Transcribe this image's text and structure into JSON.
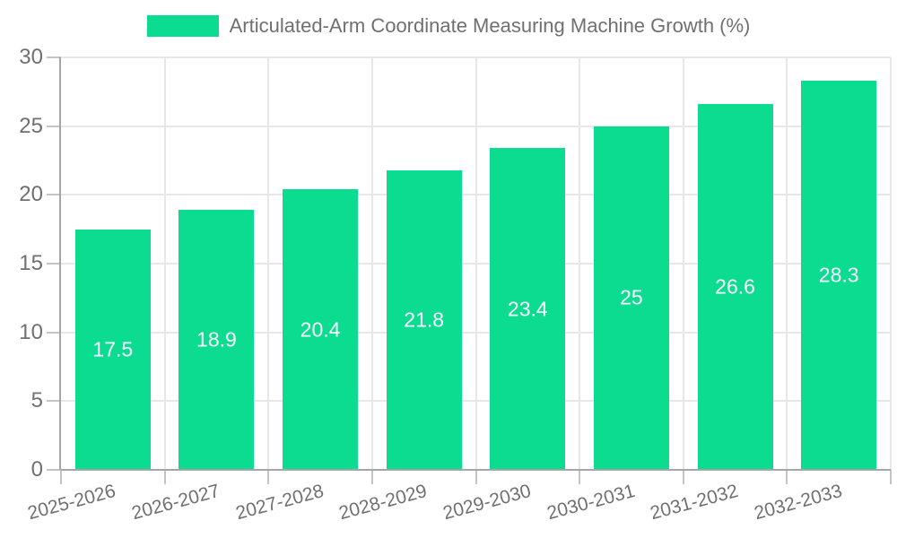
{
  "chart_data": {
    "type": "bar",
    "title": "Articulated-Arm Coordinate Measuring Machine Growth (%)",
    "categories": [
      "2025-2026",
      "2026-2027",
      "2027-2028",
      "2028-2029",
      "2029-2030",
      "2030-2031",
      "2031-2032",
      "2032-2033"
    ],
    "values": [
      17.5,
      18.9,
      20.4,
      21.8,
      23.4,
      25,
      26.6,
      28.3
    ],
    "value_labels": [
      "17.5",
      "18.9",
      "20.4",
      "21.8",
      "23.4",
      "25",
      "26.6",
      "28.3"
    ],
    "xlabel": "",
    "ylabel": "",
    "ylim": [
      0,
      30
    ],
    "y_ticks": [
      0,
      5,
      10,
      15,
      20,
      25,
      30
    ],
    "grid": true,
    "legend_position": "top",
    "x_label_rotation_deg": -15,
    "colors": {
      "bar": "#0bdc8f",
      "value_label": "#ffffff",
      "text": "#707070",
      "gridline": "#e7e7e7",
      "axis_line": "#a6a6a6",
      "tick_mark": "#c4c4c4",
      "background": "#ffffff"
    }
  }
}
